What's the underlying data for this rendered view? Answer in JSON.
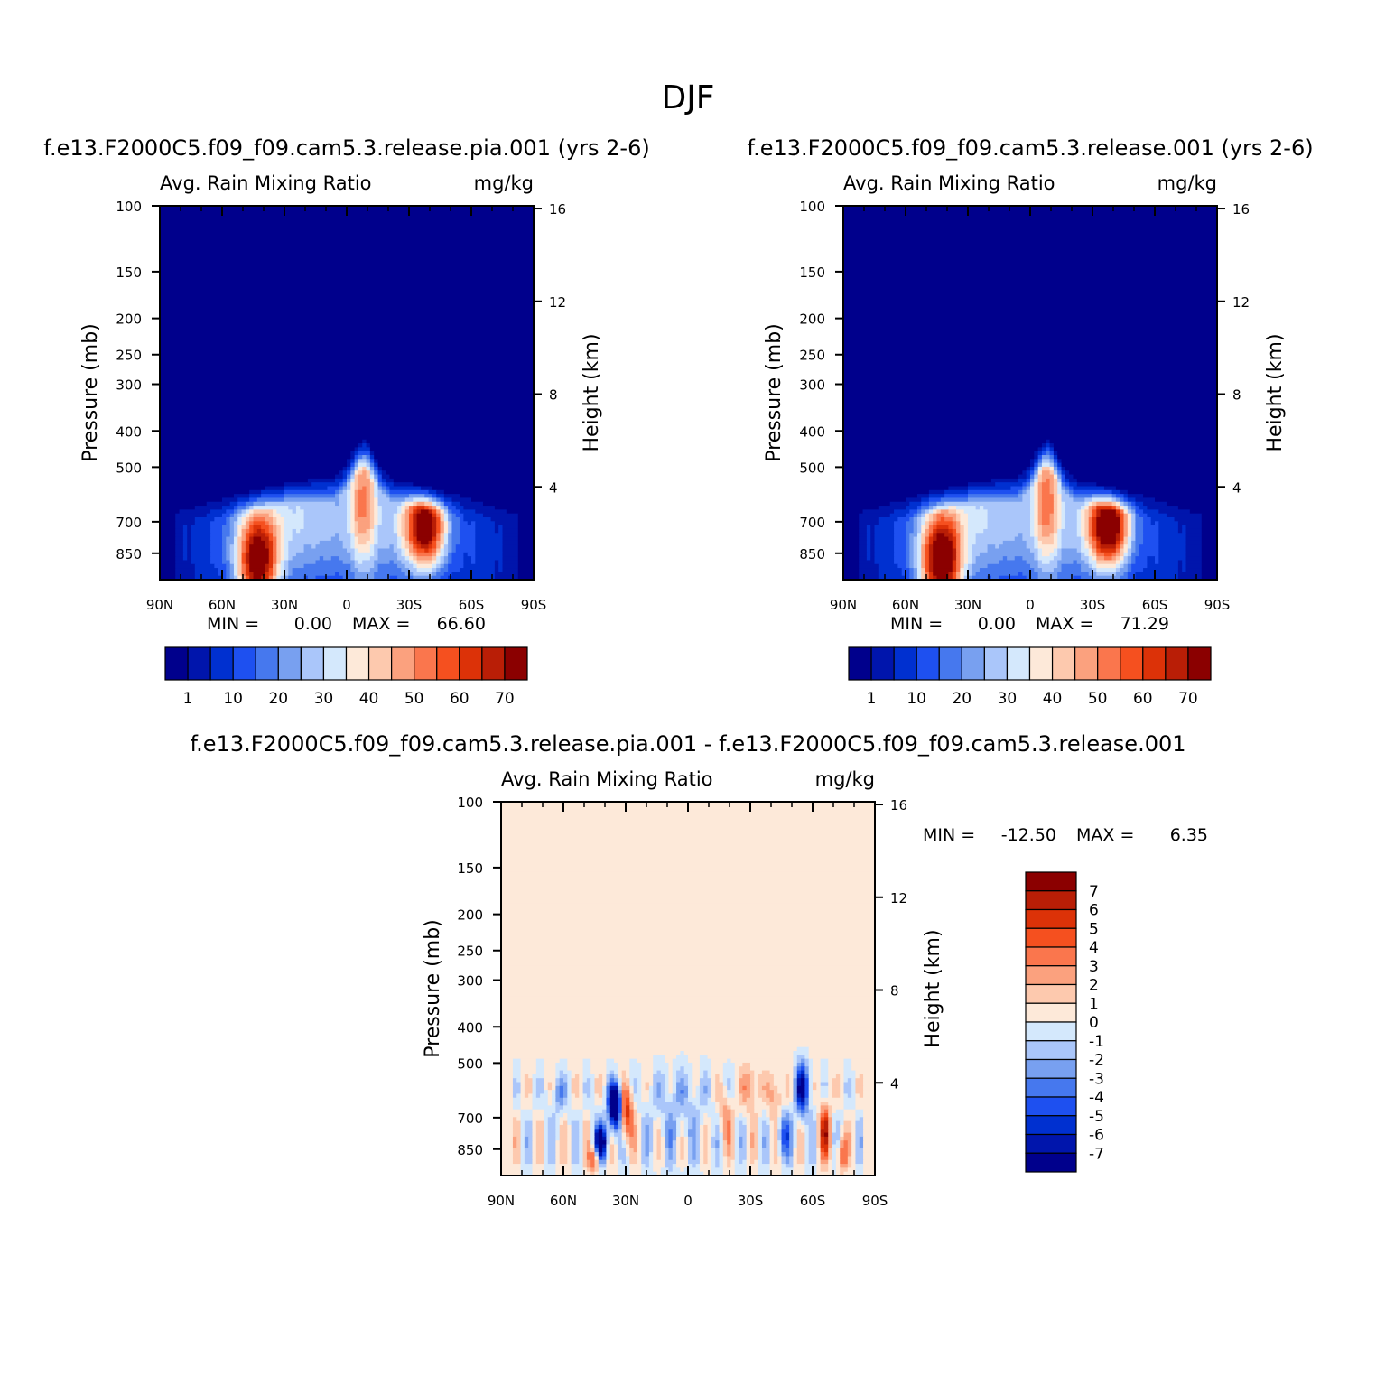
{
  "figure": {
    "title": "DJF"
  },
  "colors": {
    "diverging": [
      "#00008c",
      "#0015ac",
      "#0030d0",
      "#1e50f0",
      "#4678ee",
      "#78a0f0",
      "#aac6fa",
      "#d4e8fc",
      "#fde9d9",
      "#fdc9ae",
      "#fba17e",
      "#fa764d",
      "#f5501f",
      "#dc3208",
      "#b91e06",
      "#8b0000"
    ]
  },
  "chart_data": [
    {
      "id": "panel-left",
      "type": "heatmap",
      "case_title": "f.e13.F2000C5.f09_f09.cam5.3.release.pia.001 (yrs 2-6)",
      "variable": "Avg. Rain Mixing Ratio",
      "units": "mg/kg",
      "ylabel": "Pressure (mb)",
      "y2label": "Height (km)",
      "x_tick_labels": [
        "90N",
        "60N",
        "30N",
        "0",
        "30S",
        "60S",
        "90S"
      ],
      "y_tick_labels": [
        "100",
        "150",
        "200",
        "250",
        "300",
        "400",
        "500",
        "700",
        "850"
      ],
      "y_tick_values": [
        100,
        150,
        200,
        250,
        300,
        400,
        500,
        700,
        850
      ],
      "y2_tick_labels": [
        "16",
        "12",
        "8",
        "4"
      ],
      "y2_tick_values": [
        16,
        12,
        8,
        4
      ],
      "xlim": [
        90,
        -90
      ],
      "ylim_mb": [
        100,
        1000
      ],
      "min_label": "MIN =",
      "min_value": "0.00",
      "max_label": "MAX =",
      "max_value": "66.60",
      "levels": [
        1,
        5,
        10,
        15,
        20,
        25,
        30,
        35,
        40,
        45,
        50,
        55,
        60,
        65,
        70
      ],
      "colorbar_labels": [
        "1",
        "10",
        "20",
        "30",
        "40",
        "50",
        "60",
        "70"
      ],
      "colorbar_label_levels": [
        1,
        10,
        20,
        30,
        40,
        50,
        60,
        70
      ],
      "field_peak": 66.6,
      "features": [
        {
          "name": "NH storm track",
          "lat": 43,
          "p": 900,
          "amp": 1.0
        },
        {
          "name": "SH storm track",
          "lat": -38,
          "p": 720,
          "amp": 1.0
        },
        {
          "name": "ITCZ",
          "lat": -8,
          "p": 560,
          "amp": 0.45
        }
      ]
    },
    {
      "id": "panel-right",
      "type": "heatmap",
      "case_title": "f.e13.F2000C5.f09_f09.cam5.3.release.001 (yrs 2-6)",
      "variable": "Avg. Rain Mixing Ratio",
      "units": "mg/kg",
      "ylabel": "Pressure (mb)",
      "y2label": "Height (km)",
      "x_tick_labels": [
        "90N",
        "60N",
        "30N",
        "0",
        "30S",
        "60S",
        "90S"
      ],
      "y_tick_labels": [
        "100",
        "150",
        "200",
        "250",
        "300",
        "400",
        "500",
        "700",
        "850"
      ],
      "y_tick_values": [
        100,
        150,
        200,
        250,
        300,
        400,
        500,
        700,
        850
      ],
      "y2_tick_labels": [
        "16",
        "12",
        "8",
        "4"
      ],
      "y2_tick_values": [
        16,
        12,
        8,
        4
      ],
      "xlim": [
        90,
        -90
      ],
      "ylim_mb": [
        100,
        1000
      ],
      "min_label": "MIN =",
      "min_value": "0.00",
      "max_label": "MAX =",
      "max_value": "71.29",
      "levels": [
        1,
        5,
        10,
        15,
        20,
        25,
        30,
        35,
        40,
        45,
        50,
        55,
        60,
        65,
        70
      ],
      "colorbar_labels": [
        "1",
        "10",
        "20",
        "30",
        "40",
        "50",
        "60",
        "70"
      ],
      "colorbar_label_levels": [
        1,
        10,
        20,
        30,
        40,
        50,
        60,
        70
      ],
      "field_peak": 71.29,
      "features": [
        {
          "name": "NH storm track",
          "lat": 43,
          "p": 900,
          "amp": 1.0
        },
        {
          "name": "SH storm track",
          "lat": -38,
          "p": 720,
          "amp": 1.0
        },
        {
          "name": "ITCZ",
          "lat": -8,
          "p": 560,
          "amp": 0.45
        }
      ]
    },
    {
      "id": "panel-diff",
      "type": "heatmap",
      "case_title": "f.e13.F2000C5.f09_f09.cam5.3.release.pia.001 - f.e13.F2000C5.f09_f09.cam5.3.release.001",
      "variable": "Avg. Rain Mixing Ratio",
      "units": "mg/kg",
      "ylabel": "Pressure (mb)",
      "y2label": "Height (km)",
      "x_tick_labels": [
        "90N",
        "60N",
        "30N",
        "0",
        "30S",
        "60S",
        "90S"
      ],
      "y_tick_labels": [
        "100",
        "150",
        "200",
        "250",
        "300",
        "400",
        "500",
        "700",
        "850"
      ],
      "y_tick_values": [
        100,
        150,
        200,
        250,
        300,
        400,
        500,
        700,
        850
      ],
      "y2_tick_labels": [
        "16",
        "12",
        "8",
        "4"
      ],
      "y2_tick_values": [
        16,
        12,
        8,
        4
      ],
      "xlim": [
        90,
        -90
      ],
      "ylim_mb": [
        100,
        1000
      ],
      "min_label": "MIN =",
      "min_value": "-12.50",
      "max_label": "MAX =",
      "max_value": "6.35",
      "levels": [
        -7,
        -6,
        -5,
        -4,
        -3,
        -2,
        -1,
        0,
        1,
        2,
        3,
        4,
        5,
        6,
        7
      ],
      "colorbar_labels": [
        "7",
        "6",
        "5",
        "4",
        "3",
        "2",
        "1",
        "0",
        "-1",
        "-2",
        "-3",
        "-4",
        "-5",
        "-6",
        "-7"
      ],
      "colorbar_label_levels": [
        7,
        6,
        5,
        4,
        3,
        2,
        1,
        0,
        -1,
        -2,
        -3,
        -4,
        -5,
        -6,
        -7
      ]
    }
  ]
}
